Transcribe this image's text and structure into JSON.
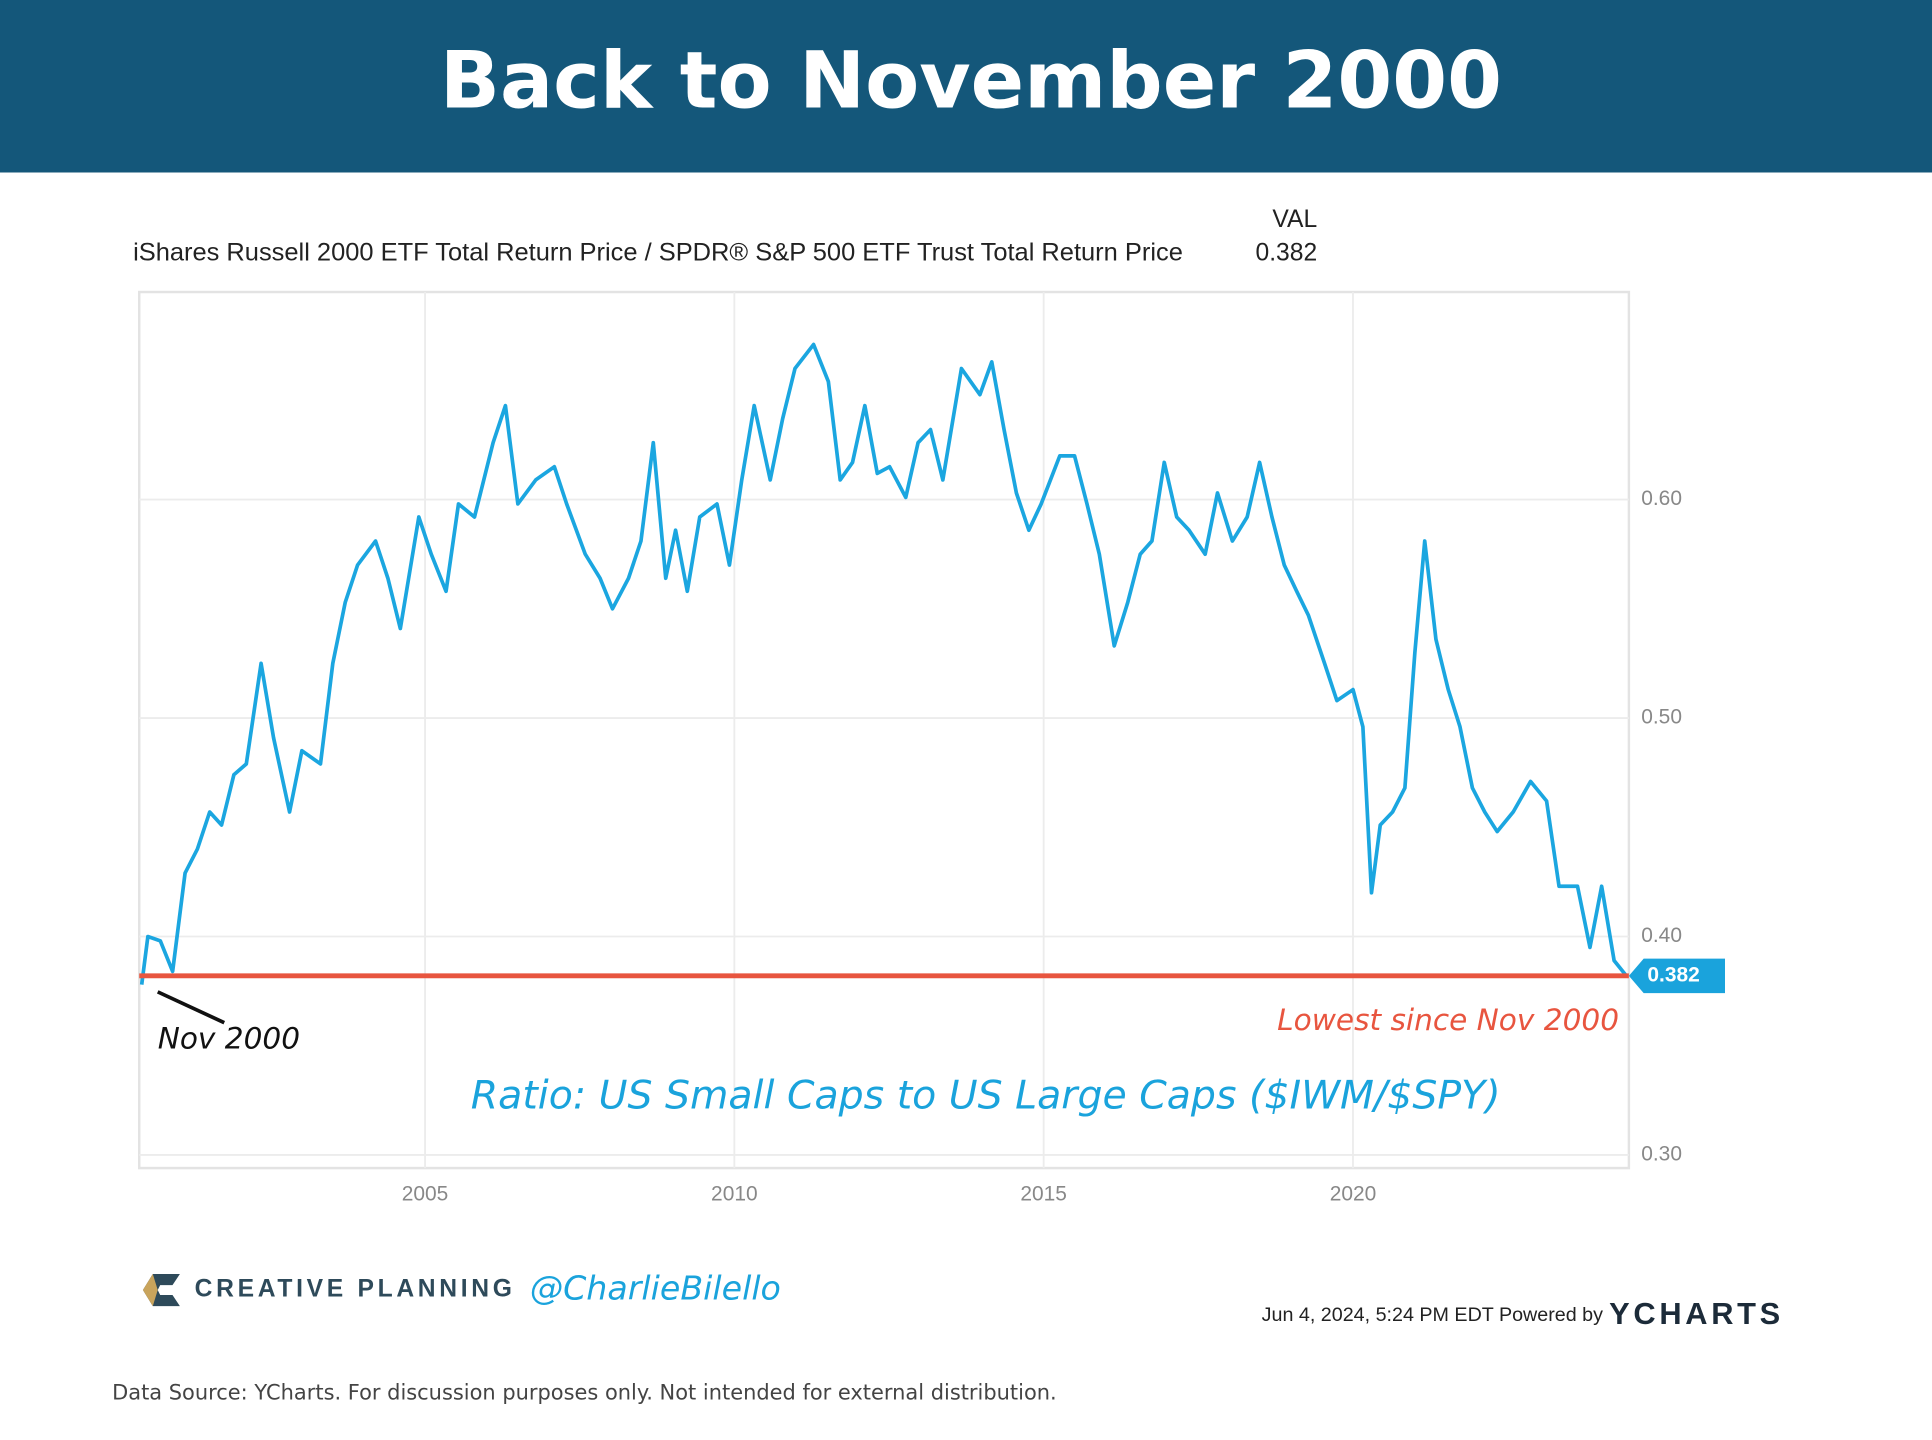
{
  "chart_data": {
    "type": "line",
    "title": "Back to November 2000",
    "value_header": "VAL",
    "latest_value": 0.382,
    "x": [
      2000.42,
      2000.52,
      2000.72,
      2000.92,
      2001.12,
      2001.32,
      2001.52,
      2001.71,
      2001.91,
      2002.11,
      2002.35,
      2002.55,
      2002.81,
      2003.01,
      2003.31,
      2003.51,
      2003.71,
      2003.91,
      2004.2,
      2004.4,
      2004.6,
      2004.9,
      2005.1,
      2005.34,
      2005.54,
      2005.8,
      2006.1,
      2006.3,
      2006.5,
      2006.79,
      2007.09,
      2007.29,
      2007.59,
      2007.83,
      2008.03,
      2008.29,
      2008.49,
      2008.69,
      2008.89,
      2009.05,
      2009.24,
      2009.44,
      2009.72,
      2009.92,
      2010.12,
      2010.32,
      2010.58,
      2010.78,
      2010.98,
      2011.28,
      2011.52,
      2011.71,
      2011.91,
      2012.11,
      2012.31,
      2012.51,
      2012.77,
      2012.97,
      2013.17,
      2013.37,
      2013.67,
      2013.97,
      2014.16,
      2014.36,
      2014.56,
      2014.76,
      2014.96,
      2015.26,
      2015.5,
      2015.7,
      2015.9,
      2016.14,
      2016.36,
      2016.56,
      2016.75,
      2016.95,
      2017.15,
      2017.35,
      2017.61,
      2017.81,
      2018.05,
      2018.29,
      2018.49,
      2018.69,
      2018.89,
      2019.09,
      2019.28,
      2019.54,
      2019.74,
      2020.0,
      2020.16,
      2020.3,
      2020.44,
      2020.64,
      2020.84,
      2021.0,
      2021.16,
      2021.34,
      2021.54,
      2021.73,
      2021.93,
      2022.13,
      2022.33,
      2022.59,
      2022.87,
      2023.13,
      2023.33,
      2023.63,
      2023.83,
      2024.02,
      2024.22,
      2024.42
    ],
    "series": [
      {
        "name": "iShares Russell 2000 ETF Total Return Price / SPDR® S&P 500 ETF Trust Total Return Price",
        "color": "#1ba6e0",
        "values": [
          0.378,
          0.4,
          0.398,
          0.384,
          0.429,
          0.44,
          0.457,
          0.451,
          0.474,
          0.479,
          0.525,
          0.491,
          0.457,
          0.485,
          0.479,
          0.525,
          0.553,
          0.57,
          0.581,
          0.564,
          0.541,
          0.592,
          0.575,
          0.558,
          0.598,
          0.592,
          0.626,
          0.643,
          0.598,
          0.609,
          0.615,
          0.598,
          0.575,
          0.564,
          0.55,
          0.564,
          0.581,
          0.626,
          0.564,
          0.586,
          0.558,
          0.592,
          0.598,
          0.57,
          0.609,
          0.643,
          0.609,
          0.637,
          0.66,
          0.671,
          0.654,
          0.609,
          0.617,
          0.643,
          0.612,
          0.615,
          0.601,
          0.626,
          0.632,
          0.609,
          0.66,
          0.648,
          0.663,
          0.632,
          0.603,
          0.586,
          0.598,
          0.62,
          0.62,
          0.598,
          0.575,
          0.533,
          0.553,
          0.575,
          0.581,
          0.617,
          0.592,
          0.586,
          0.575,
          0.603,
          0.581,
          0.592,
          0.617,
          0.592,
          0.57,
          0.558,
          0.547,
          0.525,
          0.508,
          0.513,
          0.496,
          0.42,
          0.451,
          0.457,
          0.468,
          0.53,
          0.581,
          0.536,
          0.513,
          0.496,
          0.468,
          0.457,
          0.448,
          0.457,
          0.471,
          0.462,
          0.423,
          0.423,
          0.395,
          0.423,
          0.389,
          0.382
        ]
      }
    ],
    "xlim": [
      2000.38,
      2024.46
    ],
    "xticks": [
      2005,
      2010,
      2015,
      2020
    ],
    "ylim": [
      0.294,
      0.695
    ],
    "yticks": [
      {
        "value": 0.3,
        "label": "0.30"
      },
      {
        "value": 0.4,
        "label": "0.40"
      },
      {
        "value": 0.5,
        "label": "0.50"
      },
      {
        "value": 0.6,
        "label": "0.60"
      }
    ],
    "grid": true,
    "reference_line": {
      "value": 0.382,
      "label": "Lowest since Nov 2000",
      "color": "#e8553f"
    },
    "annotations": {
      "start": "Nov 2000",
      "caption": "Ratio: US Small Caps to US Large Caps ($IWM/$SPY)"
    }
  },
  "footer": {
    "brand": "CREATIVE PLANNING",
    "handle": "@CharlieBilello",
    "timestamp": "Jun 4, 2024, 5:24 PM EDT Powered by",
    "provider": "YCHARTS",
    "source": "Data Source: YCharts. For discussion purposes only. Not intended for external distribution."
  }
}
